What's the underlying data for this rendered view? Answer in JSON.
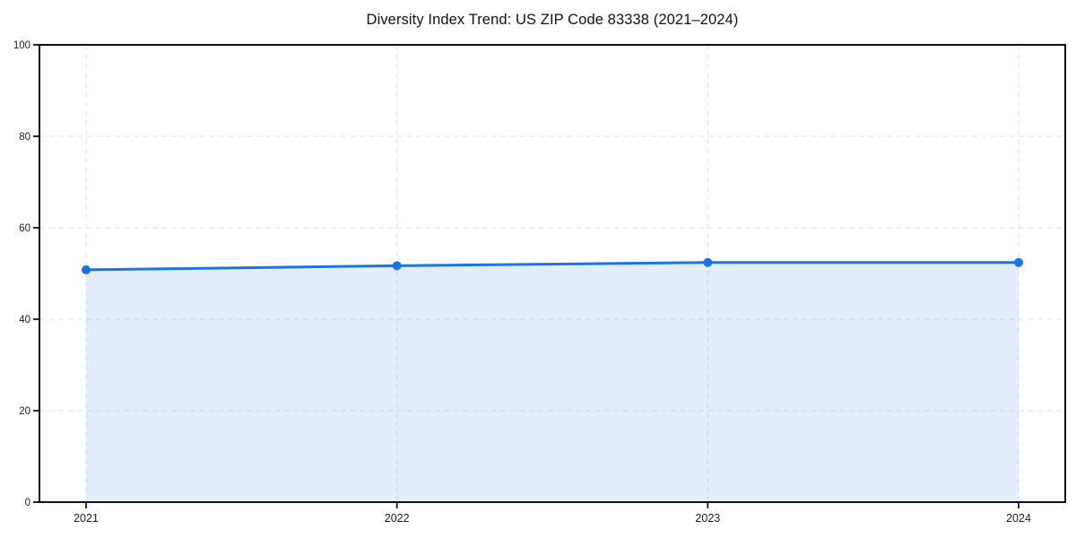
{
  "page": {
    "background": "#ffffff"
  },
  "chart": {
    "title": "Diversity Index Trend: US ZIP Code 83338 (2021–2024)"
  },
  "chart_data": {
    "type": "area",
    "title": "Diversity Index Trend: US ZIP Code 83338 (2021–2024)",
    "x": [
      2021,
      2022,
      2023,
      2024
    ],
    "categories": [
      "2021",
      "2022",
      "2023",
      "2024"
    ],
    "series": [
      {
        "name": "Diversity Index",
        "values": [
          50.8,
          51.7,
          52.4,
          52.4
        ]
      }
    ],
    "xlabel": "",
    "ylabel": "",
    "ylim": [
      0,
      100
    ],
    "yticks": [
      0,
      20,
      40,
      60,
      80,
      100
    ],
    "xticks": [
      "2021",
      "2022",
      "2023",
      "2024"
    ],
    "x_margin_fraction": 0.05,
    "grid": true,
    "grid_style": "dashed",
    "legend_position": "none",
    "marker": "circle",
    "colors": {
      "line": "#1a73e8",
      "marker": "#1a73e8",
      "fill": "#1a73e8",
      "fill_opacity": 0.12,
      "grid": "#e1e1e1",
      "axis": "#111111",
      "tick_label": "#1a1a1a",
      "background": "#ffffff"
    }
  }
}
